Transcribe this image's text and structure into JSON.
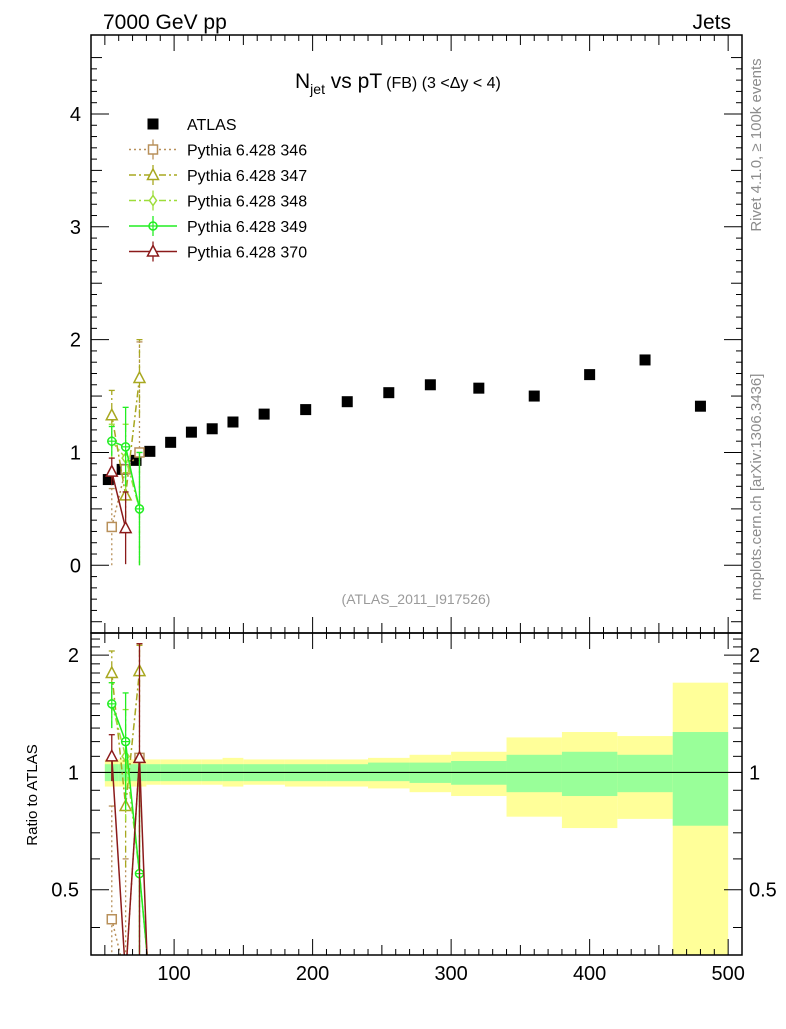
{
  "header": {
    "left": "7000 GeV pp",
    "right": "Jets"
  },
  "side_labels": {
    "upper": "Rivet 4.1.0, ≥ 100k events",
    "lower": "mcplots.cern.ch [arXiv:1306.3436]"
  },
  "chart_data": [
    {
      "type": "scatter",
      "title_main": "N",
      "title_sub": "jet",
      "title_vs": " vs pT",
      "title_small": "(FB) (3 <Δy < 4)",
      "watermark": "(ATLAS_2011_I917526)",
      "xlim": [
        40,
        510
      ],
      "ylim": [
        -0.6,
        4.7
      ],
      "yticks": [
        0,
        1,
        2,
        3,
        4
      ],
      "yticklabels": [
        "0",
        "1",
        "2",
        "3",
        "4"
      ],
      "legend_position": "top-left",
      "series": [
        {
          "name": "ATLAS",
          "color": "#000000",
          "marker": "square-filled",
          "line": "none",
          "x": [
            52.5,
            62.5,
            72.5,
            82.5,
            97.5,
            112.5,
            127.5,
            142.5,
            165,
            195,
            225,
            255,
            285,
            320,
            360,
            400,
            440,
            480
          ],
          "y": [
            0.76,
            0.85,
            0.93,
            1.01,
            1.09,
            1.18,
            1.21,
            1.27,
            1.34,
            1.38,
            1.45,
            1.53,
            1.6,
            1.57,
            1.5,
            1.69,
            1.82,
            1.41
          ]
        },
        {
          "name": "Pythia 6.428 346",
          "color": "#b8905a",
          "marker": "square-open",
          "line": "dotted",
          "x": [
            55,
            65,
            75
          ],
          "y": [
            0.34,
            0.85,
            1.0
          ],
          "err": [
            0.34,
            0.2,
            0.98
          ]
        },
        {
          "name": "Pythia 6.428 347",
          "color": "#a8a820",
          "marker": "triangle-open",
          "line": "dashdot",
          "x": [
            55,
            65,
            75
          ],
          "y": [
            1.33,
            0.62,
            1.66
          ],
          "err": [
            0.22,
            0.2,
            0.34
          ]
        },
        {
          "name": "Pythia 6.428 348",
          "color": "#9edd3a",
          "marker": "diamond-open",
          "line": "dashdot",
          "x": [
            55,
            65,
            75
          ],
          "y": [
            1.1,
            0.95,
            0.5
          ],
          "err": [
            0.15,
            0.3,
            0.5
          ]
        },
        {
          "name": "Pythia 6.428 349",
          "color": "#22ee22",
          "marker": "circle-cross",
          "line": "solid",
          "x": [
            55,
            65,
            75
          ],
          "y": [
            1.1,
            1.05,
            0.5
          ],
          "err": [
            0.13,
            0.35,
            0.5
          ]
        },
        {
          "name": "Pythia 6.428 370",
          "color": "#8b1a1a",
          "marker": "triangle-open",
          "line": "solid",
          "x": [
            55,
            65
          ],
          "y": [
            0.83,
            0.33
          ],
          "err": [
            0.12,
            0.32
          ]
        }
      ]
    },
    {
      "type": "scatter",
      "ylabel": "Ratio to ATLAS",
      "xlim": [
        40,
        510
      ],
      "ylim": [
        0.34,
        2.28
      ],
      "yticks": [
        0.5,
        1,
        2
      ],
      "yticklabels": [
        "0.5",
        "1",
        "2"
      ],
      "xticks": [
        100,
        200,
        300,
        400,
        500
      ],
      "xticklabels": [
        "100",
        "200",
        "300",
        "400",
        "500"
      ],
      "reference_line": 1,
      "bands": [
        {
          "x0": 50,
          "x1": 60,
          "g0": 0.95,
          "g1": 1.05,
          "y0": 0.92,
          "y1": 1.08
        },
        {
          "x0": 60,
          "x1": 70,
          "g0": 0.95,
          "g1": 1.05,
          "y0": 0.92,
          "y1": 1.08
        },
        {
          "x0": 70,
          "x1": 80,
          "g0": 0.95,
          "g1": 1.05,
          "y0": 0.92,
          "y1": 1.08
        },
        {
          "x0": 80,
          "x1": 90,
          "g0": 0.95,
          "g1": 1.05,
          "y0": 0.93,
          "y1": 1.08
        },
        {
          "x0": 90,
          "x1": 105,
          "g0": 0.95,
          "g1": 1.05,
          "y0": 0.93,
          "y1": 1.08
        },
        {
          "x0": 105,
          "x1": 120,
          "g0": 0.95,
          "g1": 1.05,
          "y0": 0.93,
          "y1": 1.08
        },
        {
          "x0": 120,
          "x1": 135,
          "g0": 0.95,
          "g1": 1.05,
          "y0": 0.93,
          "y1": 1.08
        },
        {
          "x0": 135,
          "x1": 150,
          "g0": 0.95,
          "g1": 1.05,
          "y0": 0.92,
          "y1": 1.09
        },
        {
          "x0": 150,
          "x1": 180,
          "g0": 0.95,
          "g1": 1.05,
          "y0": 0.93,
          "y1": 1.08
        },
        {
          "x0": 180,
          "x1": 210,
          "g0": 0.95,
          "g1": 1.05,
          "y0": 0.92,
          "y1": 1.08
        },
        {
          "x0": 210,
          "x1": 240,
          "g0": 0.95,
          "g1": 1.05,
          "y0": 0.92,
          "y1": 1.08
        },
        {
          "x0": 240,
          "x1": 270,
          "g0": 0.95,
          "g1": 1.06,
          "y0": 0.91,
          "y1": 1.09
        },
        {
          "x0": 270,
          "x1": 300,
          "g0": 0.94,
          "g1": 1.06,
          "y0": 0.89,
          "y1": 1.11
        },
        {
          "x0": 300,
          "x1": 340,
          "g0": 0.93,
          "g1": 1.07,
          "y0": 0.87,
          "y1": 1.13
        },
        {
          "x0": 340,
          "x1": 380,
          "g0": 0.89,
          "g1": 1.11,
          "y0": 0.77,
          "y1": 1.23
        },
        {
          "x0": 380,
          "x1": 420,
          "g0": 0.87,
          "g1": 1.13,
          "y0": 0.72,
          "y1": 1.27
        },
        {
          "x0": 420,
          "x1": 460,
          "g0": 0.89,
          "g1": 1.11,
          "y0": 0.76,
          "y1": 1.24
        },
        {
          "x0": 460,
          "x1": 500,
          "g0": 0.73,
          "g1": 1.27,
          "y0": 0.3,
          "y1": 1.7
        }
      ],
      "series": [
        {
          "name": "Pythia 6.428 346",
          "color": "#b8905a",
          "marker": "square-open",
          "line": "dotted",
          "x": [
            55,
            65,
            75
          ],
          "y": [
            0.42,
            0.3,
            1.09
          ],
          "err": [
            0.4,
            0.3,
            1.05
          ]
        },
        {
          "name": "Pythia 6.428 347",
          "color": "#a8a820",
          "marker": "triangle-open",
          "line": "dashdot",
          "x": [
            55,
            65,
            75
          ],
          "y": [
            1.8,
            0.82,
            1.82
          ],
          "err": [
            0.25,
            0.25,
            0.3
          ]
        },
        {
          "name": "Pythia 6.428 348",
          "color": "#9edd3a",
          "marker": "diamond-open",
          "line": "dashdot",
          "x": [
            55,
            65,
            75,
            82
          ],
          "y": [
            1.5,
            1.1,
            0.55,
            0.3
          ],
          "err": [
            0.2,
            0.35,
            0.55,
            0
          ]
        },
        {
          "name": "Pythia 6.428 349",
          "color": "#22ee22",
          "marker": "circle-cross",
          "line": "solid",
          "x": [
            55,
            65,
            75,
            82
          ],
          "y": [
            1.5,
            1.2,
            0.55,
            0.3
          ],
          "err": [
            0.2,
            0.4,
            0.55,
            0
          ]
        },
        {
          "name": "Pythia 6.428 370",
          "color": "#8b1a1a",
          "marker": "triangle-open",
          "line": "solid",
          "x": [
            55,
            65,
            75,
            81
          ],
          "y": [
            1.1,
            0.3,
            1.09,
            0.3
          ],
          "err": [
            0.15,
            0,
            1.05,
            0
          ]
        }
      ]
    }
  ]
}
